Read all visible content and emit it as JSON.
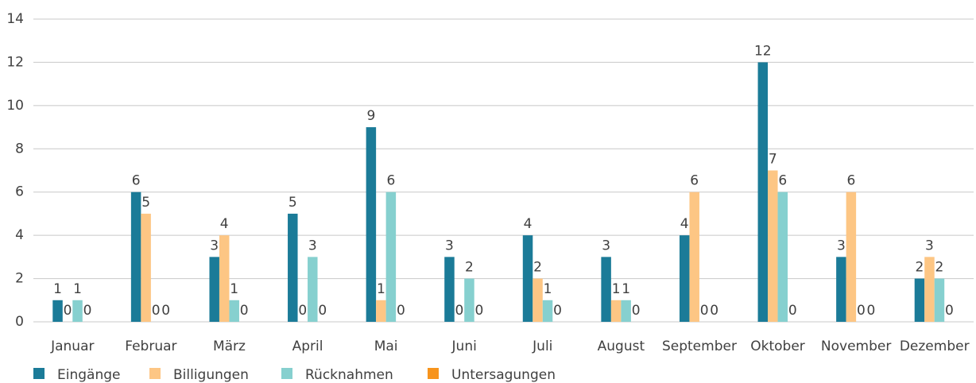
{
  "chart_data": {
    "type": "bar",
    "categories": [
      "Januar",
      "Februar",
      "März",
      "April",
      "Mai",
      "Juni",
      "Juli",
      "August",
      "September",
      "Oktober",
      "November",
      "Dezember"
    ],
    "series": [
      {
        "name": "Eingänge",
        "color": "#1b7b98",
        "values": [
          1,
          6,
          3,
          5,
          9,
          3,
          4,
          3,
          4,
          12,
          3,
          2
        ]
      },
      {
        "name": "Billigungen",
        "color": "#fdc684",
        "values": [
          0,
          5,
          4,
          0,
          1,
          0,
          2,
          1,
          6,
          7,
          6,
          3
        ]
      },
      {
        "name": "Rücknahmen",
        "color": "#86d0cf",
        "values": [
          1,
          0,
          1,
          3,
          6,
          2,
          1,
          1,
          0,
          6,
          0,
          2
        ]
      },
      {
        "name": "Untersagungen",
        "color": "#f7941d",
        "values": [
          0,
          0,
          0,
          0,
          0,
          0,
          0,
          0,
          0,
          0,
          0,
          0
        ]
      }
    ],
    "ylim": [
      0,
      14
    ],
    "yticks": [
      0,
      2,
      4,
      6,
      8,
      10,
      12,
      14
    ],
    "grid": true,
    "legend": "bottom"
  }
}
